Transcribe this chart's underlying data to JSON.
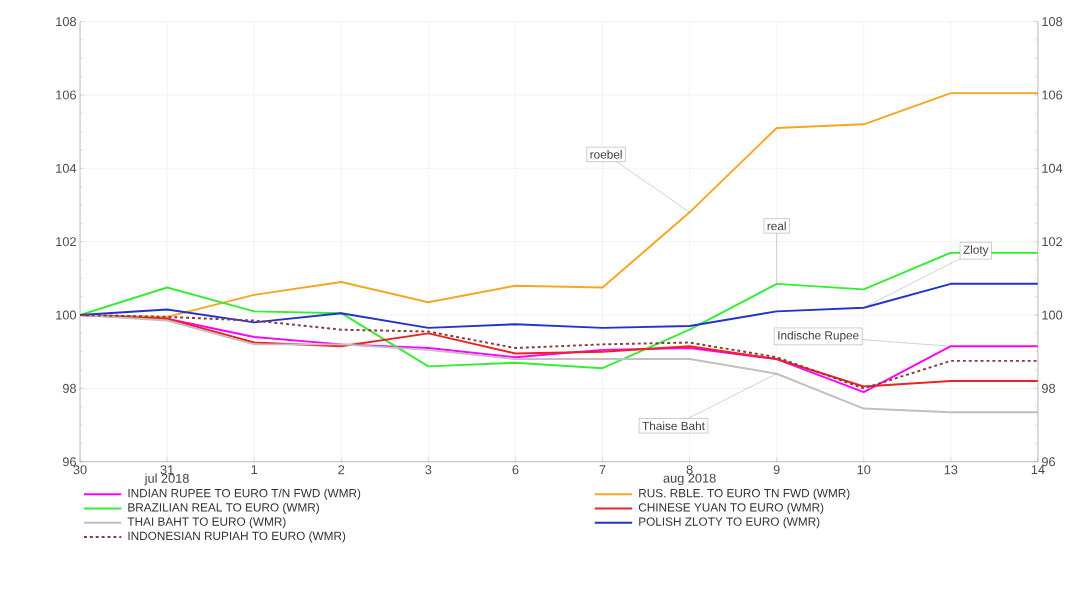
{
  "chart_data": {
    "type": "line",
    "categories": [
      "30",
      "31",
      "1",
      "2",
      "3",
      "6",
      "7",
      "8",
      "9",
      "10",
      "13",
      "14"
    ],
    "ylim": [
      96,
      108
    ],
    "yticks": [
      96,
      98,
      100,
      102,
      104,
      106,
      108
    ],
    "y2lim": [
      96,
      108
    ],
    "y2ticks": [
      96,
      98,
      100,
      102,
      104,
      106,
      108
    ],
    "grid": true,
    "legend": "bottom",
    "line_style": "solid",
    "series": [
      {
        "name": "INDIAN RUPEE TO EURO T/N FWD (WMR)",
        "color": "#ff00ff",
        "values": [
          100,
          99.9,
          99.4,
          99.2,
          99.1,
          98.85,
          99.05,
          99.1,
          98.8,
          97.9,
          99.15,
          99.15
        ]
      },
      {
        "name": "RUS. RBLE. TO EURO TN FWD (WMR)",
        "color": "#f5a623",
        "values": [
          100,
          99.95,
          100.55,
          100.9,
          100.35,
          100.8,
          100.75,
          102.8,
          105.1,
          105.2,
          106.05,
          106.05
        ]
      },
      {
        "name": "BRAZILIAN REAL TO EURO (WMR)",
        "color": "#33ee33",
        "values": [
          100,
          100.75,
          100.1,
          100.05,
          98.6,
          98.7,
          98.55,
          99.6,
          100.85,
          100.7,
          101.7,
          101.7
        ]
      },
      {
        "name": "CHINESE YUAN TO EURO (WMR)",
        "color": "#ee2222",
        "values": [
          100,
          99.9,
          99.25,
          99.15,
          99.5,
          98.95,
          99.0,
          99.15,
          98.8,
          98.05,
          98.2,
          98.2
        ]
      },
      {
        "name": "THAI BAHT TO EURO (WMR)",
        "color": "#c0c0c0",
        "values": [
          100,
          99.85,
          99.2,
          99.2,
          99.05,
          98.8,
          98.8,
          98.8,
          98.4,
          97.45,
          97.35,
          97.35
        ]
      },
      {
        "name": "POLISH ZLOTY TO EURO (WMR)",
        "color": "#2233cc",
        "values": [
          100,
          100.15,
          99.8,
          100.05,
          99.65,
          99.75,
          99.65,
          99.7,
          100.1,
          100.2,
          100.85,
          100.85
        ]
      },
      {
        "name": "INDONESIAN RUPIAH TO EURO (WMR)",
        "color": "#8b3a3a",
        "line_style": "dashed",
        "values": [
          100,
          99.95,
          99.85,
          99.6,
          99.55,
          99.1,
          99.2,
          99.25,
          98.85,
          98.0,
          98.75,
          98.75
        ]
      }
    ],
    "annotations": [
      {
        "text": "roebel",
        "x": "8",
        "y": 102.8
      },
      {
        "text": "real",
        "x": "9",
        "y": 100.85
      },
      {
        "text": "Zloty",
        "x": "10",
        "y": 100.2
      },
      {
        "text": "Indische Rupee",
        "x": "13",
        "y": 99.15
      },
      {
        "text": "Thaise Baht",
        "x": "9",
        "y": 98.4
      },
      "jul 2018",
      "aug 2018"
    ]
  }
}
